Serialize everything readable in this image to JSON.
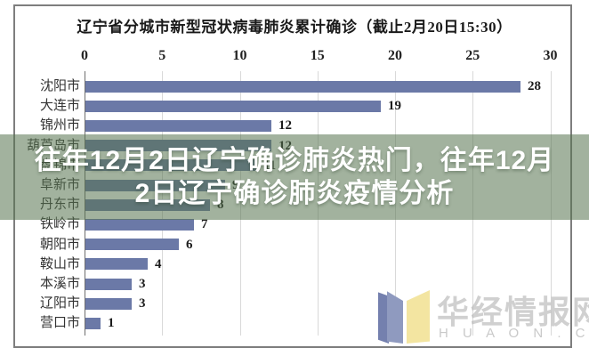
{
  "chart_data": {
    "type": "bar",
    "orientation": "horizontal",
    "title": "辽宁省分城市新型冠状病毒肺炎累计确诊（截止2月20日15:30）",
    "categories": [
      "沈阳市",
      "大连市",
      "锦州市",
      "葫芦岛市",
      "盘锦市",
      "阜新市",
      "丹东市",
      "铁岭市",
      "朝阳市",
      "鞍山市",
      "本溪市",
      "辽阳市",
      "营口市"
    ],
    "values": [
      28,
      19,
      12,
      12,
      11,
      9,
      8,
      7,
      6,
      4,
      3,
      3,
      1
    ],
    "xlabel": "",
    "ylabel": "",
    "xlim": [
      0,
      30
    ],
    "xticks": [
      0,
      5,
      10,
      15,
      20,
      25,
      30
    ],
    "grid": true,
    "bar_color": "#6b79a7",
    "legend": "none"
  },
  "overlay": {
    "line1": "往年12月2日辽宁确诊肺炎热门，往年12月",
    "line2": "2日辽宁确诊肺炎疫情分析"
  },
  "watermark": {
    "name": "华经情报网",
    "domain": "H U A O N . C O M"
  },
  "colors": {
    "bar": "#6b79a7",
    "overlay_band": "rgba(85,115,78,0.55)",
    "grid": "#d9d9d9",
    "logo_blue": "#8f9abf",
    "logo_dark_blue": "#7480ae",
    "logo_yellow": "#f3e5a1"
  }
}
